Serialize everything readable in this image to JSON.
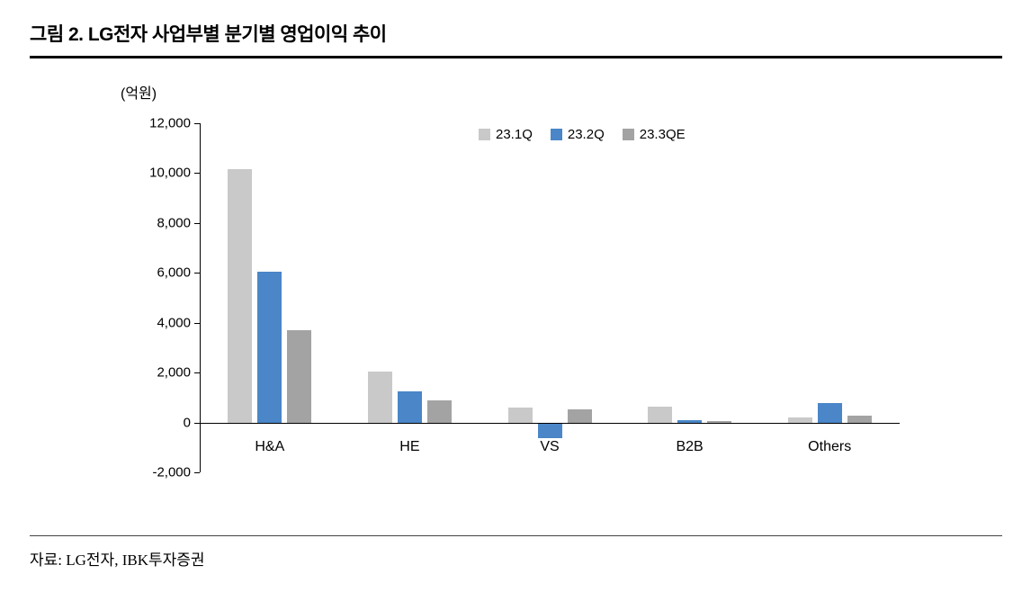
{
  "header": {
    "title": "그림 2. LG전자 사업부별 분기별 영업이익 추이"
  },
  "footer": {
    "source": "자료: LG전자, IBK투자증권"
  },
  "chart_data": {
    "type": "bar",
    "unit_label": "(억원)",
    "categories": [
      "H&A",
      "HE",
      "VS",
      "B2B",
      "Others"
    ],
    "series": [
      {
        "name": "23.1Q",
        "color": "#c9c9c9",
        "values": [
          10150,
          2030,
          580,
          650,
          200
        ]
      },
      {
        "name": "23.2Q",
        "color": "#4a86c8",
        "values": [
          6030,
          1260,
          -580,
          100,
          780
        ]
      },
      {
        "name": "23.3QE",
        "color": "#a3a3a3",
        "values": [
          3700,
          900,
          530,
          70,
          280
        ]
      }
    ],
    "ylim": [
      -2000,
      12000
    ],
    "ytick_step": 2000,
    "ytick_labels": [
      "12,000",
      "10,000",
      "8,000",
      "6,000",
      "4,000",
      "2,000",
      "0",
      "-2,000"
    ],
    "grid": false,
    "legend_position": "top-center"
  }
}
